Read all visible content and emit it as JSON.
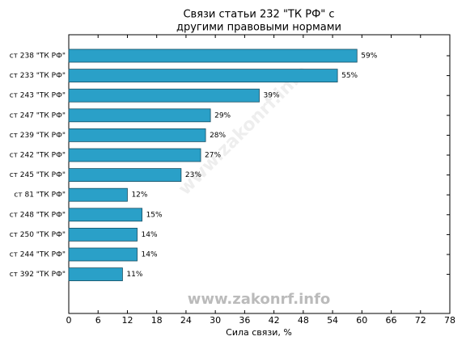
{
  "chart_data": {
    "type": "barh",
    "title": [
      "Связи статьи 232 \"ТК РФ\" с",
      "другими правовыми нормами"
    ],
    "xlabel": "Сила связи, %",
    "watermark": "www.zakonrf.info",
    "categories": [
      "ст 238 \"ТК РФ\"",
      "ст 233 \"ТК РФ\"",
      "ст 243 \"ТК РФ\"",
      "ст 247 \"ТК РФ\"",
      "ст 239 \"ТК РФ\"",
      "ст 242 \"ТК РФ\"",
      "ст 245 \"ТК РФ\"",
      "ст 81 \"ТК РФ\"",
      "ст 248 \"ТК РФ\"",
      "ст 250 \"ТК РФ\"",
      "ст 244 \"ТК РФ\"",
      "ст 392 \"ТК РФ\""
    ],
    "values": [
      59,
      55,
      39,
      29,
      28,
      27,
      23,
      12,
      15,
      14,
      14,
      11
    ],
    "value_labels": [
      "59%",
      "55%",
      "39%",
      "29%",
      "28%",
      "27%",
      "23%",
      "12%",
      "15%",
      "14%",
      "14%",
      "11%"
    ],
    "color": "#2aa0c8",
    "xlim": [
      0,
      78
    ],
    "xticks": [
      0,
      6,
      12,
      18,
      24,
      30,
      36,
      42,
      48,
      54,
      60,
      66,
      72,
      78
    ]
  }
}
